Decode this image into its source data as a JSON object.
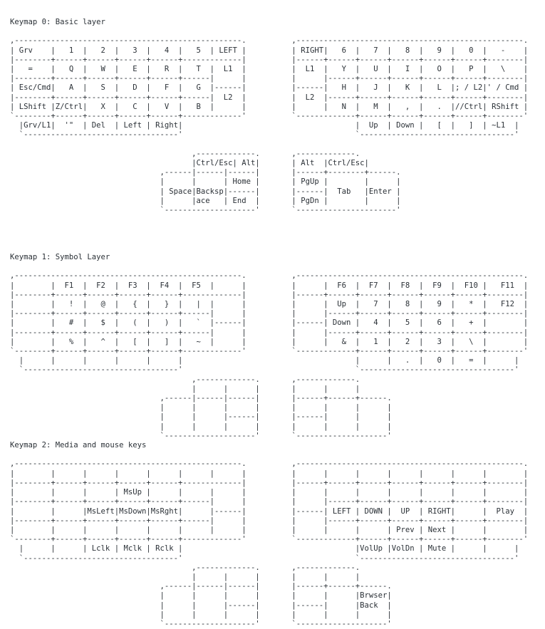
{
  "page": {
    "background_color": "#ffffff",
    "text_color": "#2b3137"
  },
  "sections": [
    {
      "title": "Keymap 0: Basic layer",
      "art": [
        ",--------------------------------------------------.          ,--------------------------------------------------.",
        "| Grv    |   1  |   2  |   3  |   4  |   5  | LEFT |          | RIGHT|   6  |   7  |   8  |   9  |   0  |   -    |",
        "|--------+------+------+------+------+-------------|          |------+------+------+------+------+------+--------|",
        "|   =    |   Q  |   W  |   E  |   R  |   T  |  L1  |          |  L1  |   Y  |   U  |   I  |   O  |   P  |   \\    |",
        "|--------+------+------+------+------+------|      |          |      |------+------+------+------+------+--------|",
        "| Esc/Cmd|   A  |   S  |   D  |   F  |   G  |------|          |------|   H  |   J  |   K  |   L  |; / L2|' / Cmd |",
        "|--------+------+------+------+------+------|  L2  |          |  L2  |------+------+------+------+------+--------|",
        "| LShift |Z/Ctrl|   X  |   C  |   V  |   B  |      |          |      |   N  |   M  |   ,  |   .  |//Ctrl| RShift |",
        "`--------+------+------+------+------+-------------'          `-------------+------+------+------+------+--------'",
        "  |Grv/L1|  '\"  | Del  | Left | Right|                                      |  Up  | Down |   [  |   ]  | ~L1  |",
        "  `----------------------------------'                                      `----------------------------------'",
        "",
        "                                        ,-------------.       ,-------------.",
        "                                        |Ctrl/Esc| Alt|       | Alt  |Ctrl/Esc|",
        "                                 ,------|------|------|       |------+--------+------.",
        "                                 |      |      | Home |       | PgUp |        |      |",
        "                                 | Space|Backsp|------|       |------|  Tab   |Enter |",
        "                                 |      |ace   | End  |       | PgDn |        |      |",
        "                                 `--------------------'       `----------------------'"
      ]
    },
    {
      "title": "Keymap 1: Symbol Layer",
      "art": [
        ",--------------------------------------------------.          ,--------------------------------------------------.",
        "|        |  F1  |  F2  |  F3  |  F4  |  F5  |      |          |      |  F6  |  F7  |  F8  |  F9  |  F10 |   F11  |",
        "|--------+------+------+------+------+-------------|          |------+------+------+------+------+------+--------|",
        "|        |   !  |   @  |   {  |   }  |   |  |      |          |      |  Up  |   7  |   8  |   9  |   *  |   F12  |",
        "|--------+------+------+------+------+------|      |          |      |------+------+------+------+------+--------|",
        "|        |   #  |   $  |   (  |   )  |   `  |------|          |------| Down |   4  |   5  |   6  |   +  |        |",
        "|--------+------+------+------+------+------|      |          |      |------+------+------+------+------+--------|",
        "|        |   %  |   ^  |   [  |   ]  |   ~  |      |          |      |   &  |   1  |   2  |   3  |   \\  |        |",
        "`--------+------+------+------+------+-------------'          `-------------+------+------+------+------+--------'",
        "  |      |      |      |      |      |                                      |      |   .  |   0  |   =  |      |",
        "  `----------------------------------'                                      `----------------------------------'",
        "                                        ,-------------.       ,-------------.",
        "                                        |      |      |       |      |      |",
        "                                 ,------|------|------|       |------+------+------.",
        "                                 |      |      |      |       |      |      |      |",
        "                                 |      |      |------|       |------|      |      |",
        "                                 |      |      |      |       |      |      |      |",
        "                                 `--------------------'       `--------------------'"
      ]
    },
    {
      "title": "Keymap 2: Media and mouse keys",
      "art": [
        ",--------------------------------------------------.          ,--------------------------------------------------.",
        "|        |      |      |      |      |      |      |          |      |      |      |      |      |      |        |",
        "|--------+------+------+------+------+-------------|          |------+------+------+------+------+------+--------|",
        "|        |      |      | MsUp |      |      |      |          |      |      |      |      |      |      |        |",
        "|--------+------+------+------+------+------|      |          |      |------+------+------+------+------+--------|",
        "|        |      |MsLeft|MsDown|MsRght|      |------|          |------| LEFT | DOWN |  UP  | RIGHT|      |  Play  |",
        "|--------+------+------+------+------+------|      |          |      |------+------+------+------+------+--------|",
        "|        |      |      |      |      |      |      |          |      |      |      | Prev | Next |      |        |",
        "`--------+------+------+------+------+-------------'          `-------------+------+------+------+------+--------'",
        "  |      |      | Lclk | Mclk | Rclk |                                      |VolUp |VolDn | Mute |      |      |",
        "  `----------------------------------'                                      `----------------------------------'",
        "                                        ,-------------.       ,-------------.",
        "                                        |      |      |       |      |      |",
        "                                 ,------|------|------|       |------+------+------.",
        "                                 |      |      |      |       |      |      |Brwser|",
        "                                 |      |      |------|       |------|      |Back  |",
        "                                 |      |      |      |       |      |      |      |",
        "                                 `--------------------'       `--------------------'"
      ]
    }
  ]
}
